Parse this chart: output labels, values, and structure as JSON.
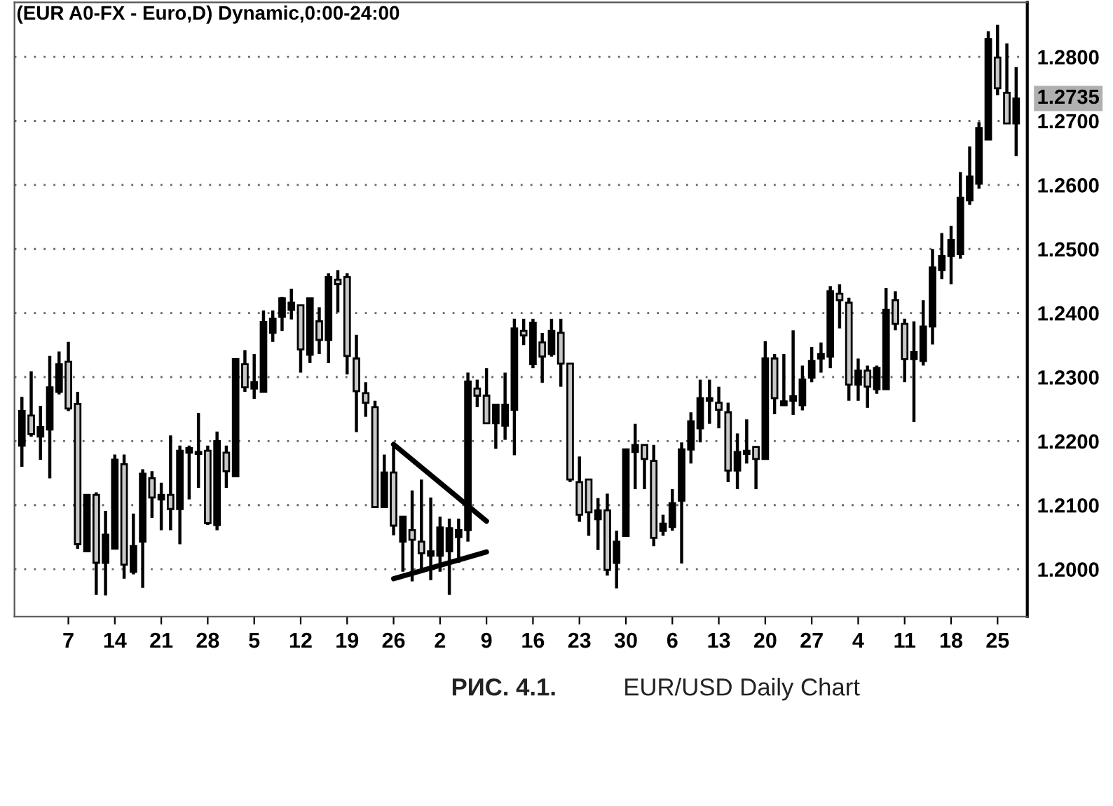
{
  "chart_data": {
    "type": "candlestick",
    "title": "(EUR A0-FX - Euro,D) Dynamic,0:00-24:00",
    "categories": [
      null,
      null,
      null,
      null,
      null,
      "7",
      null,
      null,
      null,
      null,
      "14",
      null,
      null,
      null,
      null,
      "21",
      null,
      null,
      null,
      null,
      "28",
      null,
      null,
      null,
      null,
      "5",
      null,
      null,
      null,
      null,
      "12",
      null,
      null,
      null,
      null,
      "19",
      null,
      null,
      null,
      null,
      "26",
      null,
      null,
      null,
      null,
      "2",
      null,
      null,
      null,
      null,
      "9",
      null,
      null,
      null,
      null,
      "16",
      null,
      null,
      null,
      null,
      "23",
      null,
      null,
      null,
      null,
      "30",
      null,
      null,
      null,
      null,
      "6",
      null,
      null,
      null,
      null,
      "13",
      null,
      null,
      null,
      null,
      "20",
      null,
      null,
      null,
      null,
      "27",
      null,
      null,
      null,
      null,
      "4",
      null,
      null,
      null,
      null,
      "11",
      null,
      null,
      null,
      null,
      "18",
      null,
      null,
      null,
      null,
      "25",
      null,
      null
    ],
    "ohlc": [
      [
        1.2193,
        1.2269,
        1.216,
        1.2247
      ],
      [
        1.224,
        1.2309,
        1.2207,
        1.2211
      ],
      [
        1.2207,
        1.2255,
        1.2171,
        1.2222
      ],
      [
        1.2218,
        1.2333,
        1.2142,
        1.2284
      ],
      [
        1.2277,
        1.234,
        1.2273,
        1.232
      ],
      [
        1.2324,
        1.2355,
        1.2247,
        1.2251
      ],
      [
        1.2258,
        1.2277,
        1.2032,
        1.2039
      ],
      [
        1.2028,
        1.2116,
        1.2028,
        1.2116
      ],
      [
        1.2116,
        1.212,
        1.196,
        1.201
      ],
      [
        1.201,
        1.2091,
        1.1959,
        1.2054
      ],
      [
        1.2032,
        1.2179,
        1.2032,
        1.2171
      ],
      [
        1.2164,
        1.2179,
        1.1985,
        1.2007
      ],
      [
        1.1996,
        1.2087,
        1.1992,
        1.2036
      ],
      [
        1.2043,
        1.2156,
        1.1971,
        1.2149
      ],
      [
        1.2142,
        1.2153,
        1.208,
        1.2112
      ],
      [
        1.2109,
        1.2135,
        1.2061,
        1.2116
      ],
      [
        1.2116,
        1.2209,
        1.2061,
        1.2094
      ],
      [
        1.2094,
        1.2193,
        1.2039,
        1.2185
      ],
      [
        1.2182,
        1.2193,
        1.2109,
        1.2189
      ],
      [
        1.2183,
        1.2244,
        1.2127,
        1.218
      ],
      [
        1.2185,
        1.2193,
        1.2069,
        1.2072
      ],
      [
        1.2069,
        1.2215,
        1.2061,
        1.22
      ],
      [
        1.2182,
        1.2193,
        1.2127,
        1.2153
      ],
      [
        1.2145,
        1.2328,
        1.2145,
        1.2328
      ],
      [
        1.232,
        1.2342,
        1.2277,
        1.2284
      ],
      [
        1.2282,
        1.2336,
        1.2266,
        1.2292
      ],
      [
        1.2277,
        1.2404,
        1.2277,
        1.2386
      ],
      [
        1.2369,
        1.2404,
        1.2355,
        1.2391
      ],
      [
        1.2394,
        1.2425,
        1.2372,
        1.2423
      ],
      [
        1.2405,
        1.2438,
        1.239,
        1.2416
      ],
      [
        1.2412,
        1.2412,
        1.2307,
        1.2343
      ],
      [
        1.2335,
        1.2423,
        1.2322,
        1.2423
      ],
      [
        1.2387,
        1.2409,
        1.2336,
        1.2358
      ],
      [
        1.2358,
        1.2462,
        1.2322,
        1.2456
      ],
      [
        1.2452,
        1.2467,
        1.2401,
        1.2445
      ],
      [
        1.2456,
        1.2462,
        1.2304,
        1.2333
      ],
      [
        1.2329,
        1.2366,
        1.2214,
        1.2278
      ],
      [
        1.2275,
        1.2292,
        1.2238,
        1.226
      ],
      [
        1.2253,
        1.2263,
        1.2097,
        1.2097
      ],
      [
        1.2097,
        1.2179,
        1.2097,
        1.2151
      ],
      [
        1.2151,
        1.2196,
        1.2053,
        1.2068
      ],
      [
        1.2043,
        1.2082,
        1.1996,
        1.2082
      ],
      [
        1.2061,
        1.2123,
        1.1981,
        1.2046
      ],
      [
        1.2043,
        1.214,
        1.1996,
        1.2025
      ],
      [
        1.2021,
        1.2112,
        1.1983,
        1.2028
      ],
      [
        1.2021,
        1.2082,
        1.1996,
        1.2065
      ],
      [
        1.2028,
        1.2079,
        1.196,
        1.2064
      ],
      [
        1.205,
        1.2079,
        1.201,
        1.2061
      ],
      [
        1.2061,
        1.2307,
        1.2043,
        1.2293
      ],
      [
        1.2282,
        1.2296,
        1.2253,
        1.2271
      ],
      [
        1.2271,
        1.2314,
        1.2228,
        1.2228
      ],
      [
        1.2228,
        1.2257,
        1.2188,
        1.2257
      ],
      [
        1.2224,
        1.2307,
        1.2202,
        1.2257
      ],
      [
        1.2249,
        1.2391,
        1.2178,
        1.2376
      ],
      [
        1.2372,
        1.2391,
        1.235,
        1.2365
      ],
      [
        1.232,
        1.2391,
        1.2314,
        1.2385
      ],
      [
        1.2354,
        1.2369,
        1.2291,
        1.2332
      ],
      [
        1.2336,
        1.2391,
        1.2332,
        1.2372
      ],
      [
        1.2369,
        1.2391,
        1.2285,
        1.2321
      ],
      [
        1.2321,
        1.2321,
        1.2136,
        1.214
      ],
      [
        1.2136,
        1.2176,
        1.2074,
        1.2085
      ],
      [
        1.214,
        1.214,
        1.2052,
        1.2089
      ],
      [
        1.2078,
        1.2111,
        1.203,
        1.2092
      ],
      [
        1.2092,
        1.2118,
        1.199,
        1.1999
      ],
      [
        1.201,
        1.206,
        1.197,
        1.2043
      ],
      [
        1.2052,
        1.2187,
        1.2052,
        1.2187
      ],
      [
        1.2183,
        1.2227,
        1.2125,
        1.2194
      ],
      [
        1.2194,
        1.2194,
        1.2125,
        1.2172
      ],
      [
        1.2169,
        1.2194,
        1.2036,
        1.2049
      ],
      [
        1.206,
        1.2085,
        1.2052,
        1.2071
      ],
      [
        1.2066,
        1.2125,
        1.206,
        1.2103
      ],
      [
        1.2107,
        1.2198,
        1.2009,
        1.2187
      ],
      [
        1.2187,
        1.2245,
        1.2165,
        1.2231
      ],
      [
        1.222,
        1.2296,
        1.2198,
        1.2267
      ],
      [
        1.2263,
        1.2296,
        1.2227,
        1.2267
      ],
      [
        1.226,
        1.2285,
        1.222,
        1.2249
      ],
      [
        1.2245,
        1.226,
        1.2136,
        1.2154
      ],
      [
        1.2154,
        1.2212,
        1.2125,
        1.2183
      ],
      [
        1.218,
        1.2234,
        1.2165,
        1.2185
      ],
      [
        1.2191,
        1.2191,
        1.2125,
        1.2172
      ],
      [
        1.2172,
        1.2356,
        1.2172,
        1.2329
      ],
      [
        1.2329,
        1.2336,
        1.2242,
        1.2267
      ],
      [
        1.2256,
        1.2336,
        1.2255,
        1.2262
      ],
      [
        1.2263,
        1.2373,
        1.2241,
        1.227
      ],
      [
        1.2256,
        1.2318,
        1.2248,
        1.2296
      ],
      [
        1.2299,
        1.2347,
        1.2292,
        1.2325
      ],
      [
        1.2329,
        1.2354,
        1.2307,
        1.2336
      ],
      [
        1.2332,
        1.2442,
        1.2314,
        1.2434
      ],
      [
        1.243,
        1.2445,
        1.2376,
        1.242
      ],
      [
        1.2416,
        1.2424,
        1.2263,
        1.2288
      ],
      [
        1.2288,
        1.2329,
        1.2263,
        1.231
      ],
      [
        1.231,
        1.2318,
        1.2252,
        1.2285
      ],
      [
        1.2281,
        1.2318,
        1.2274,
        1.2314
      ],
      [
        1.2281,
        1.2439,
        1.2281,
        1.2405
      ],
      [
        1.242,
        1.2434,
        1.2373,
        1.2383
      ],
      [
        1.2383,
        1.2391,
        1.2292,
        1.2328
      ],
      [
        1.2328,
        1.2387,
        1.223,
        1.2339
      ],
      [
        1.2325,
        1.242,
        1.2318,
        1.2379
      ],
      [
        1.2379,
        1.25,
        1.2351,
        1.2471
      ],
      [
        1.2467,
        1.2525,
        1.2453,
        1.2489
      ],
      [
        1.2489,
        1.2536,
        1.2445,
        1.2514
      ],
      [
        1.2492,
        1.262,
        1.2485,
        1.258
      ],
      [
        1.2576,
        1.266,
        1.2569,
        1.2613
      ],
      [
        1.2602,
        1.2698,
        1.2594,
        1.2689
      ],
      [
        1.2671,
        1.284,
        1.2671,
        1.2828
      ],
      [
        1.2799,
        1.285,
        1.274,
        1.2751
      ],
      [
        1.2744,
        1.2821,
        1.2696,
        1.2696
      ],
      [
        1.2696,
        1.2784,
        1.2645,
        1.2735
      ]
    ],
    "series": [
      {
        "type": "line",
        "color": "#000000",
        "x": [
          "26",
          "9"
        ],
        "values": [
          1.2195,
          1.2075
        ]
      },
      {
        "type": "line",
        "color": "#000000",
        "x": [
          "26",
          "9"
        ],
        "values": [
          1.1985,
          1.2027
        ]
      }
    ],
    "ylim": [
      1.1926,
      1.2885
    ],
    "yticks": [
      {
        "value": 1.2,
        "label": "1.2000"
      },
      {
        "value": 1.21,
        "label": "1.2100"
      },
      {
        "value": 1.22,
        "label": "1.2200"
      },
      {
        "value": 1.23,
        "label": "1.2300"
      },
      {
        "value": 1.24,
        "label": "1.2400"
      },
      {
        "value": 1.25,
        "label": "1.2500"
      },
      {
        "value": 1.26,
        "label": "1.2600"
      },
      {
        "value": 1.27,
        "label": "1.2700"
      },
      {
        "value": 1.28,
        "label": "1.2800"
      }
    ],
    "grid": "y",
    "annotations": [
      "РИС. 4.1.",
      "EUR/USD Daily Chart",
      "1.2735"
    ]
  }
}
